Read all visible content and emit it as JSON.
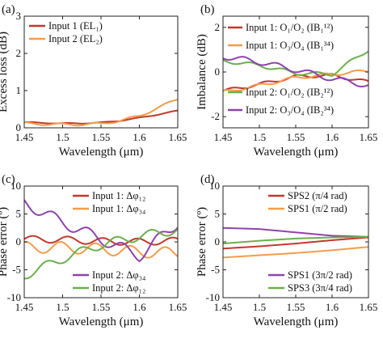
{
  "chart_data": [
    {
      "panel_label": "(a)",
      "type": "line",
      "xlabel": "Wavelength (μm)",
      "ylabel": "Excess loss (dB)",
      "xlim": [
        1.45,
        1.65
      ],
      "ylim": [
        0,
        3
      ],
      "xticks": [
        "1.45",
        "1.5",
        "1.55",
        "1.6",
        "1.65"
      ],
      "yticks": [
        "0",
        "1",
        "2",
        "3"
      ],
      "grid": false,
      "legend_position": "top-left",
      "series": [
        {
          "name": "Input 1 (EL₁)",
          "color": "#c0392b",
          "x": [
            1.45,
            1.475,
            1.5,
            1.525,
            1.55,
            1.575,
            1.6,
            1.625,
            1.65
          ],
          "y": [
            0.15,
            0.13,
            0.12,
            0.12,
            0.14,
            0.19,
            0.27,
            0.36,
            0.46
          ],
          "ripple": 0.01
        },
        {
          "name": "Input 2 (EL₂)",
          "color": "#f39c4a",
          "x": [
            1.45,
            1.475,
            1.5,
            1.525,
            1.55,
            1.575,
            1.6,
            1.625,
            1.65
          ],
          "y": [
            0.12,
            0.1,
            0.09,
            0.09,
            0.11,
            0.19,
            0.32,
            0.54,
            0.78
          ],
          "ripple": 0.03
        }
      ]
    },
    {
      "panel_label": "(b)",
      "type": "line",
      "xlabel": "Wavelength (μm)",
      "ylabel": "Imbalance (dB)",
      "xlim": [
        1.45,
        1.65
      ],
      "ylim": [
        -2.5,
        2.5
      ],
      "xticks": [
        "1.45",
        "1.5",
        "1.55",
        "1.6",
        "1.65"
      ],
      "yticks": [
        "-2",
        "0",
        "2"
      ],
      "grid": false,
      "legend_position": "full",
      "series": [
        {
          "name": "Input 1: O₁/O₂ (IB₁¹²)",
          "color": "#c0392b",
          "x": [
            1.45,
            1.5,
            1.55,
            1.6,
            1.65
          ],
          "y": [
            -0.85,
            -0.55,
            -0.2,
            -0.15,
            -0.45
          ],
          "ripple": 0.07
        },
        {
          "name": "Input 1: O₃/O₄ (IB₁³⁴)",
          "color": "#f39c4a",
          "x": [
            1.45,
            1.5,
            1.55,
            1.6,
            1.65
          ],
          "y": [
            -0.9,
            -0.6,
            -0.25,
            -0.1,
            0.05
          ],
          "ripple": 0.07
        },
        {
          "name": "Input 2: O₁/O₂ (IB₂¹²)",
          "color": "#6ab04c",
          "x": [
            1.45,
            1.5,
            1.55,
            1.6,
            1.65
          ],
          "y": [
            0.5,
            0.3,
            -0.05,
            -0.1,
            1.0
          ],
          "ripple": 0.08
        },
        {
          "name": "Input 2: O₃/O₄ (IB₂³⁴)",
          "color": "#8e44ad",
          "x": [
            1.45,
            1.5,
            1.55,
            1.6,
            1.65
          ],
          "y": [
            0.7,
            0.45,
            0.1,
            -0.3,
            -0.6
          ],
          "ripple": 0.12
        }
      ]
    },
    {
      "panel_label": "(c)",
      "type": "line",
      "xlabel": "Wavelength (μm)",
      "ylabel": "Phase error (º)",
      "xlim": [
        1.45,
        1.65
      ],
      "ylim": [
        -10,
        10
      ],
      "xticks": [
        "1.45",
        "1.5",
        "1.55",
        "1.6",
        "1.65"
      ],
      "yticks": [
        "-10",
        "-5",
        "0",
        "5",
        "10"
      ],
      "grid": false,
      "legend_position": "top and bottom",
      "series": [
        {
          "name": "Input 1: Δφ₁₂",
          "color": "#c0392b",
          "x": [
            1.45,
            1.5,
            1.55,
            1.6,
            1.65
          ],
          "y": [
            0.5,
            0.4,
            0.1,
            0.0,
            0.2
          ],
          "ripple": 0.6
        },
        {
          "name": "Input 1: Δφ₃₄",
          "color": "#f39c4a",
          "x": [
            1.45,
            1.5,
            1.55,
            1.6,
            1.65
          ],
          "y": [
            -1.0,
            -1.0,
            -1.3,
            -1.8,
            -2.0
          ],
          "ripple": 1.0
        },
        {
          "name": "Input 2: Δφ₃₄",
          "color": "#8e44ad",
          "x": [
            1.45,
            1.5,
            1.55,
            1.6,
            1.65
          ],
          "y": [
            7.0,
            3.5,
            0.5,
            -2.5,
            3.5
          ],
          "ripple": 1.0
        },
        {
          "name": "Input 2: Δφ₁₂",
          "color": "#6ab04c",
          "x": [
            1.45,
            1.5,
            1.55,
            1.6,
            1.65
          ],
          "y": [
            -6.0,
            -3.0,
            -0.5,
            1.0,
            2.2
          ],
          "ripple": 0.8
        }
      ]
    },
    {
      "panel_label": "(d)",
      "type": "line",
      "xlabel": "Wavelength (μm)",
      "ylabel": "Phase error (º)",
      "xlim": [
        1.45,
        1.65
      ],
      "ylim": [
        -10,
        10
      ],
      "xticks": [
        "1.45",
        "1.5",
        "1.55",
        "1.6",
        "1.65"
      ],
      "yticks": [
        "-10",
        "-5",
        "0",
        "5",
        "10"
      ],
      "grid": false,
      "legend_position": "top-right and bottom-right",
      "series": [
        {
          "name": "SPS2 (π/4 rad)",
          "color": "#c0392b",
          "x": [
            1.45,
            1.5,
            1.55,
            1.6,
            1.65
          ],
          "y": [
            -1.2,
            -0.8,
            -0.3,
            0.3,
            0.8
          ],
          "ripple": 0
        },
        {
          "name": "SPS1 (π/2 rad)",
          "color": "#f39c4a",
          "x": [
            1.45,
            1.5,
            1.55,
            1.6,
            1.65
          ],
          "y": [
            -2.8,
            -2.4,
            -2.0,
            -1.5,
            -0.9
          ],
          "ripple": 0
        },
        {
          "name": "SPS1 (3π/2 rad)",
          "color": "#8e44ad",
          "x": [
            1.45,
            1.5,
            1.55,
            1.6,
            1.65
          ],
          "y": [
            2.5,
            2.3,
            1.7,
            1.1,
            0.9
          ],
          "ripple": 0
        },
        {
          "name": "SPS3 (3π/4 rad)",
          "color": "#6ab04c",
          "x": [
            1.45,
            1.5,
            1.55,
            1.6,
            1.65
          ],
          "y": [
            -0.3,
            0.2,
            0.6,
            0.8,
            0.9
          ],
          "ripple": 0
        }
      ]
    }
  ]
}
